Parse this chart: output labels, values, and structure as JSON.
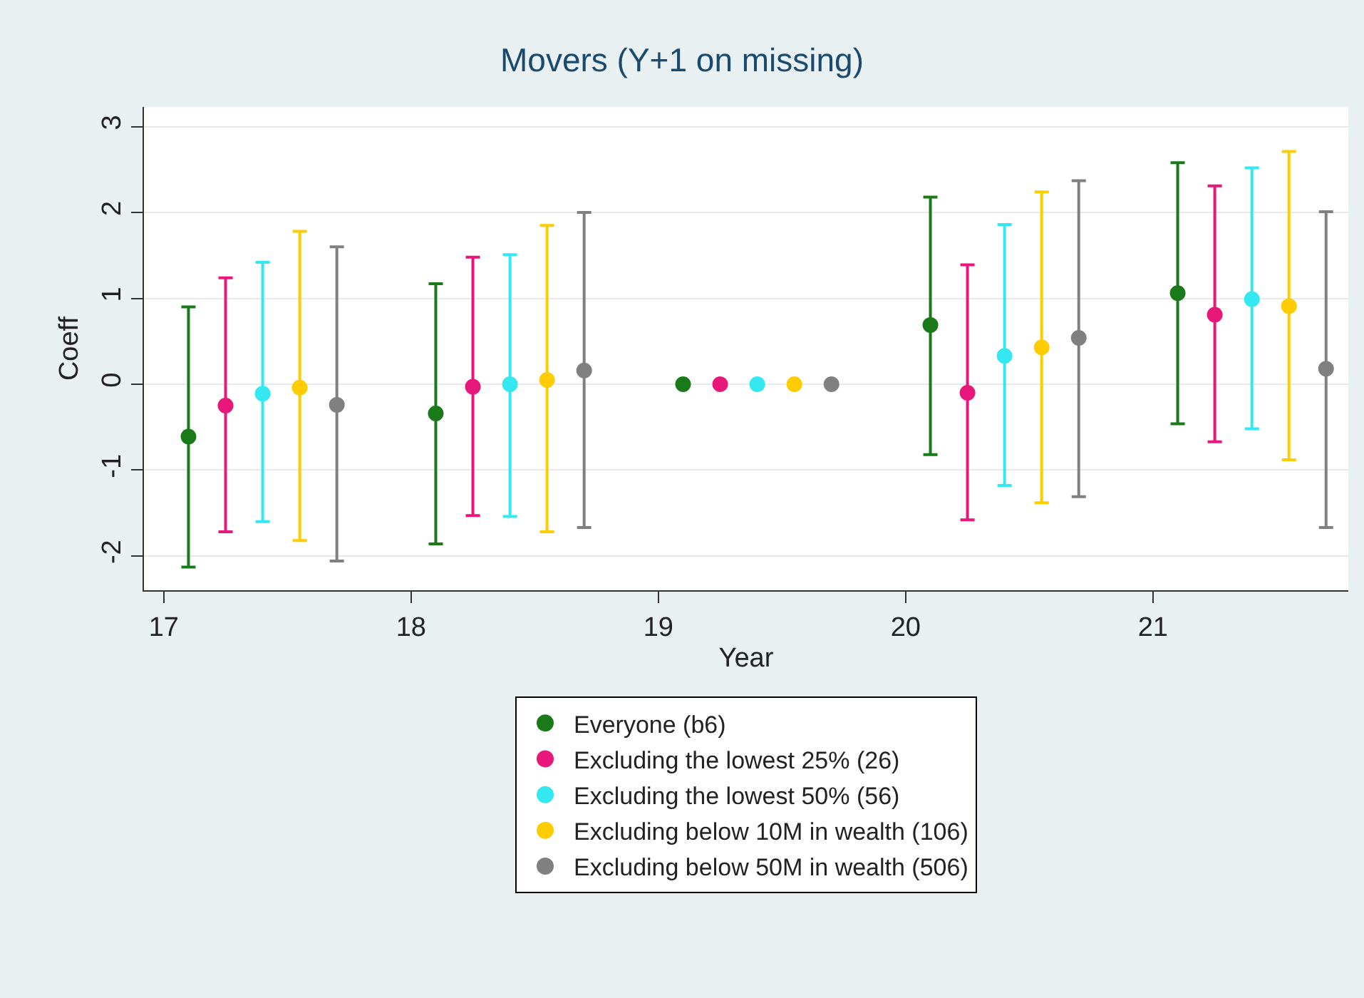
{
  "chart_data": {
    "type": "scatter",
    "title": "Movers (Y+1 on missing)",
    "xlabel": "Year",
    "ylabel": "Coeff",
    "xlim": [
      16.92,
      21.79
    ],
    "xticks": [
      17,
      18,
      19,
      20,
      21
    ],
    "ylim": [
      -2.4,
      3.23
    ],
    "yticks": [
      -2,
      -1,
      0,
      1,
      2,
      3
    ],
    "grid": "y",
    "legend": "bottom",
    "marker": "circle",
    "series": [
      {
        "name": "Everyone (b6)",
        "color": "#1a7a1a",
        "x": [
          17.1,
          18.1,
          19.1,
          20.1,
          21.1
        ],
        "values": [
          -0.61,
          -0.34,
          0,
          0.69,
          1.06
        ],
        "errors": [
          [
            -2.13,
            0.9
          ],
          [
            -1.86,
            1.17
          ],
          null,
          [
            -0.82,
            2.18
          ],
          [
            -0.46,
            2.58
          ]
        ]
      },
      {
        "name": "Excluding the lowest 25% (26)",
        "color": "#e8177a",
        "x": [
          17.25,
          18.25,
          19.25,
          20.25,
          21.25
        ],
        "values": [
          -0.25,
          -0.03,
          0,
          -0.1,
          0.81
        ],
        "errors": [
          [
            -1.72,
            1.24
          ],
          [
            -1.53,
            1.48
          ],
          null,
          [
            -1.58,
            1.39
          ],
          [
            -0.67,
            2.31
          ]
        ]
      },
      {
        "name": "Excluding the lowest 50% (56)",
        "color": "#33e8f0",
        "x": [
          17.4,
          18.4,
          19.4,
          20.4,
          21.4
        ],
        "values": [
          -0.11,
          0,
          0,
          0.33,
          0.99
        ],
        "errors": [
          [
            -1.6,
            1.42
          ],
          [
            -1.54,
            1.51
          ],
          null,
          [
            -1.18,
            1.86
          ],
          [
            -0.52,
            2.52
          ]
        ]
      },
      {
        "name": "Excluding below 10M in wealth (106)",
        "color": "#ffcc00",
        "x": [
          17.55,
          18.55,
          19.55,
          20.55,
          21.55
        ],
        "values": [
          -0.04,
          0.05,
          0,
          0.43,
          0.91
        ],
        "errors": [
          [
            -1.82,
            1.78
          ],
          [
            -1.72,
            1.85
          ],
          null,
          [
            -1.38,
            2.24
          ],
          [
            -0.88,
            2.71
          ]
        ]
      },
      {
        "name": "Excluding below 50M in wealth (506)",
        "color": "#808080",
        "x": [
          17.7,
          18.7,
          19.7,
          20.7,
          21.7
        ],
        "values": [
          -0.24,
          0.16,
          0,
          0.54,
          0.18
        ],
        "errors": [
          [
            -2.06,
            1.6
          ],
          [
            -1.67,
            2.0
          ],
          null,
          [
            -1.31,
            2.37
          ],
          [
            -1.67,
            2.01
          ]
        ]
      }
    ]
  }
}
